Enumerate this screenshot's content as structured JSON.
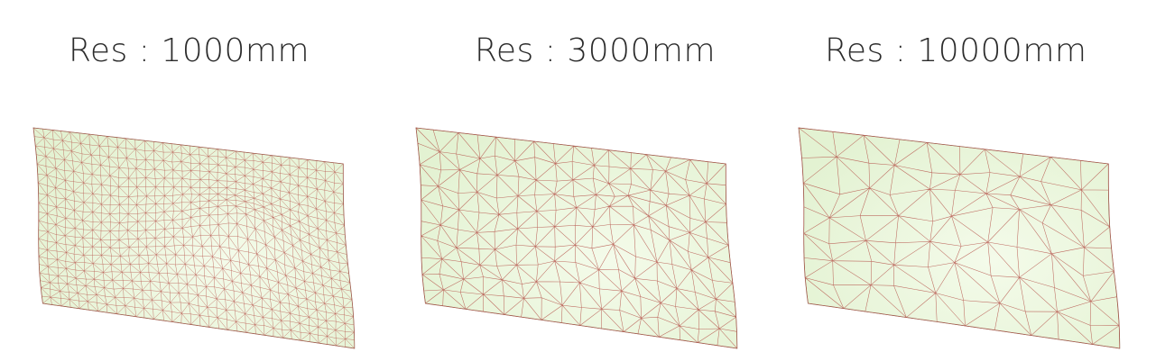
{
  "panels": [
    {
      "title": "Res : 1000mm",
      "mesh_density": "fine"
    },
    {
      "title": "Res : 3000mm",
      "mesh_density": "medium"
    },
    {
      "title": "Res : 10000mm",
      "mesh_density": "coarse"
    }
  ],
  "colors": {
    "surface_fill": "#e3f2d2",
    "surface_highlight": "#f4fbea",
    "mesh_edge": "#b5524a",
    "outline": "#8c6a55",
    "title_text": "#2b2b2b"
  }
}
